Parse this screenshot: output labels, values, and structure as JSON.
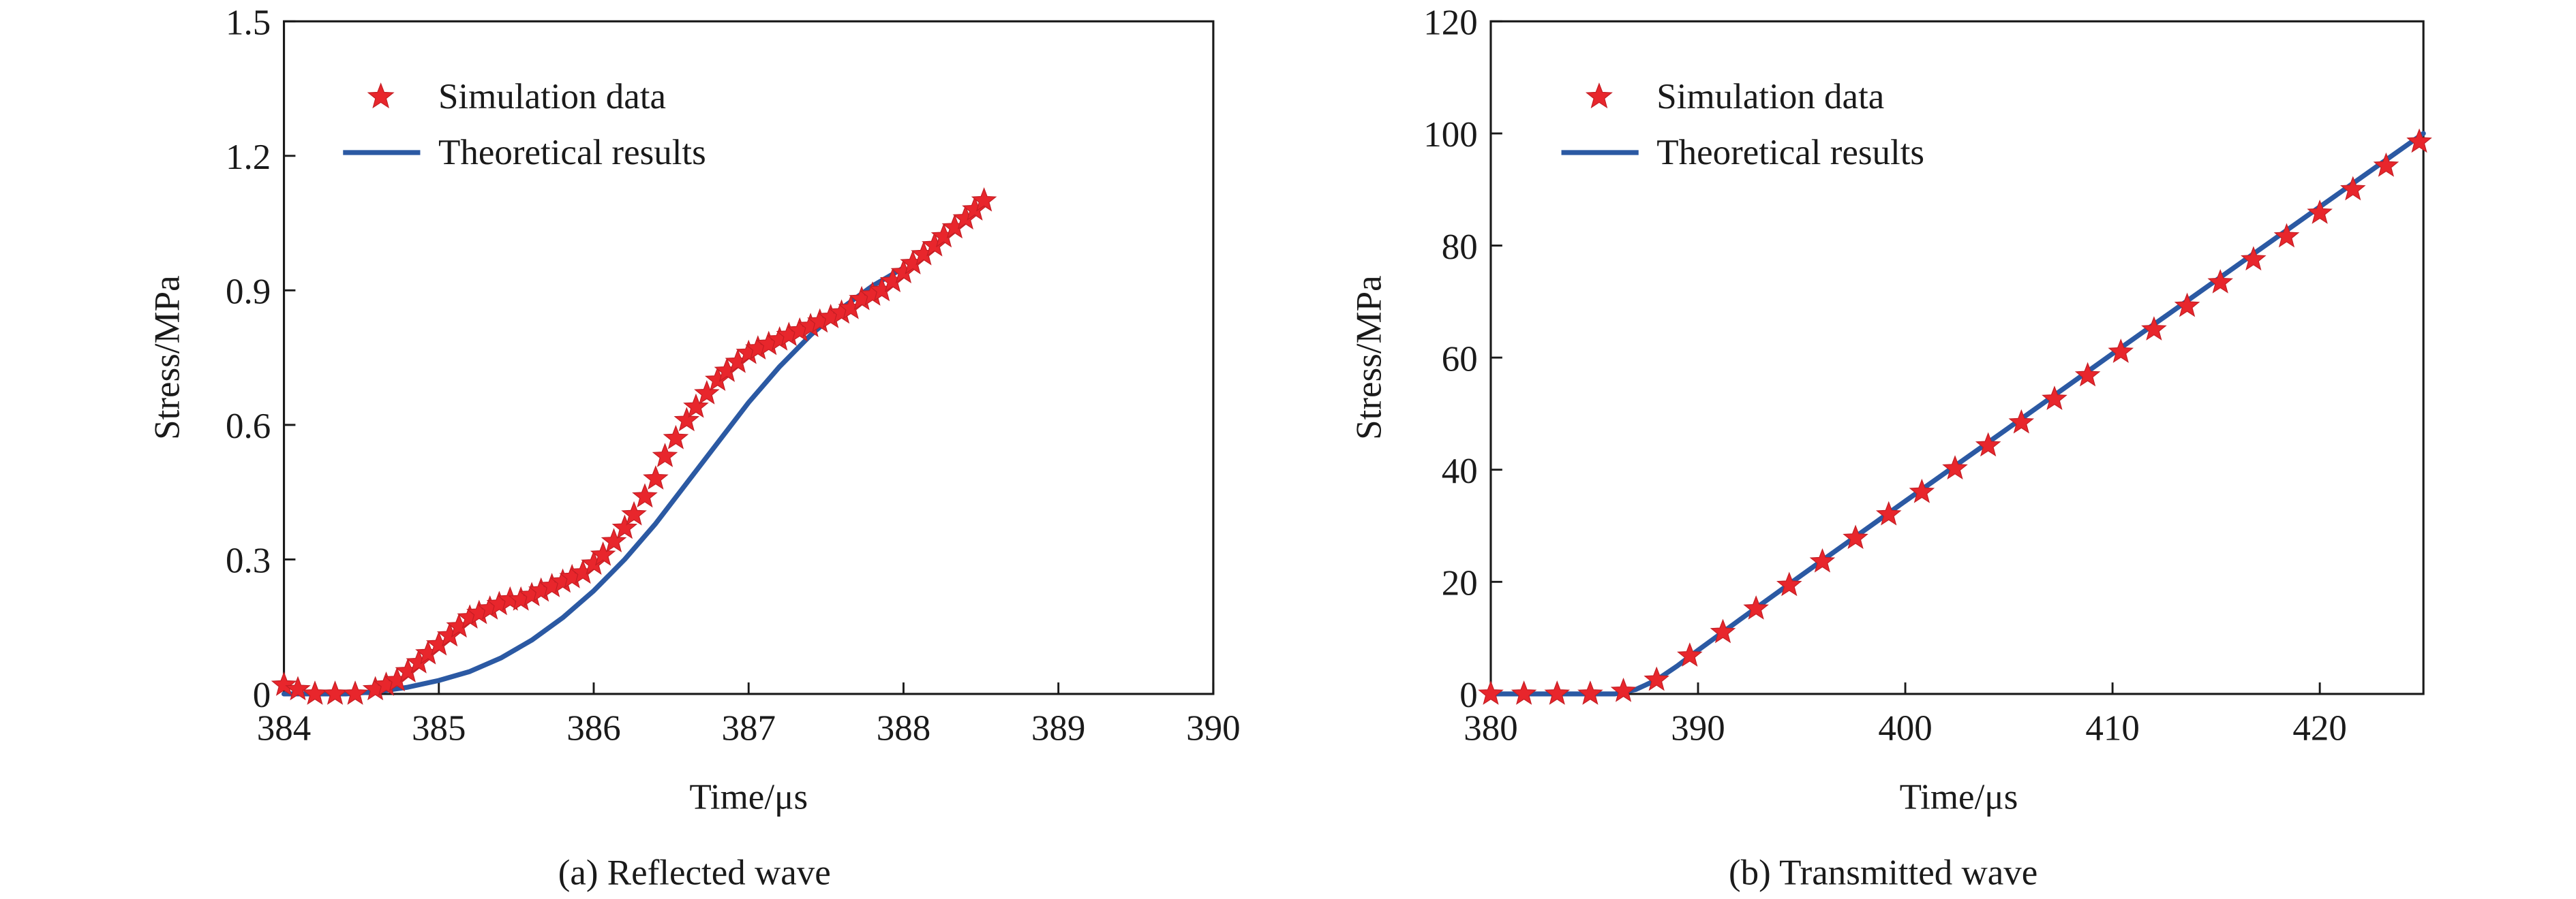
{
  "chart_data": [
    {
      "type": "line",
      "caption": "(a) Reflected wave",
      "xlabel": "Time/μs",
      "ylabel": "Stress/MPa",
      "xlim": [
        384,
        390
      ],
      "ylim": [
        0,
        1.5
      ],
      "xticks": [
        "384",
        "385",
        "386",
        "387",
        "388",
        "389",
        "390"
      ],
      "yticks": [
        "0",
        "0.3",
        "0.6",
        "0.9",
        "1.2",
        "1.5"
      ],
      "legend_position": "top-left",
      "grid": false,
      "series": [
        {
          "name": "Simulation data",
          "marker": "star",
          "color": "#e8262c",
          "x": [
            384.0,
            384.09,
            384.2,
            384.33,
            384.46,
            384.59,
            384.66,
            384.73,
            384.8,
            384.87,
            384.93,
            385.0,
            385.07,
            385.13,
            385.2,
            385.26,
            385.33,
            385.39,
            385.46,
            385.53,
            385.6,
            385.66,
            385.73,
            385.8,
            385.86,
            385.93,
            386.0,
            386.06,
            386.13,
            386.2,
            386.26,
            386.33,
            386.4,
            386.46,
            386.53,
            386.6,
            386.66,
            386.73,
            386.8,
            386.86,
            386.93,
            387.0,
            387.06,
            387.13,
            387.2,
            387.26,
            387.33,
            387.4,
            387.46,
            387.53,
            387.6,
            387.66,
            387.73,
            387.8,
            387.86,
            387.93,
            388.0,
            388.06,
            388.13,
            388.2,
            388.26,
            388.33,
            388.4,
            388.46,
            388.52
          ],
          "y": [
            0.02,
            0.01,
            0.0,
            0.0,
            0.0,
            0.01,
            0.02,
            0.03,
            0.05,
            0.07,
            0.09,
            0.11,
            0.13,
            0.15,
            0.17,
            0.18,
            0.19,
            0.2,
            0.21,
            0.21,
            0.22,
            0.23,
            0.24,
            0.25,
            0.26,
            0.27,
            0.29,
            0.31,
            0.34,
            0.37,
            0.4,
            0.44,
            0.48,
            0.53,
            0.57,
            0.61,
            0.64,
            0.67,
            0.7,
            0.72,
            0.74,
            0.76,
            0.77,
            0.78,
            0.79,
            0.8,
            0.81,
            0.82,
            0.83,
            0.84,
            0.85,
            0.86,
            0.88,
            0.89,
            0.9,
            0.92,
            0.94,
            0.96,
            0.98,
            1.0,
            1.02,
            1.04,
            1.06,
            1.08,
            1.1
          ]
        },
        {
          "name": "Theoretical results",
          "marker": "none",
          "color": "#2b59a3",
          "x": [
            384.0,
            384.2,
            384.4,
            384.6,
            384.8,
            385.0,
            385.2,
            385.4,
            385.6,
            385.8,
            386.0,
            386.2,
            386.4,
            386.6,
            386.8,
            387.0,
            387.2,
            387.4,
            387.6,
            387.8,
            388.0
          ],
          "y": [
            0.0,
            0.0,
            0.0,
            0.005,
            0.015,
            0.03,
            0.05,
            0.08,
            0.12,
            0.17,
            0.23,
            0.3,
            0.38,
            0.47,
            0.56,
            0.65,
            0.73,
            0.8,
            0.86,
            0.91,
            0.95
          ]
        }
      ]
    },
    {
      "type": "line",
      "caption": "(b) Transmitted wave",
      "xlabel": "Time/μs",
      "ylabel": "Stress/MPa",
      "xlim": [
        380,
        425
      ],
      "ylim": [
        0,
        120
      ],
      "xticks": [
        "380",
        "390",
        "400",
        "410",
        "420"
      ],
      "yticks": [
        "0",
        "20",
        "40",
        "60",
        "80",
        "100",
        "120"
      ],
      "legend_position": "top-left",
      "grid": false,
      "series": [
        {
          "name": "Simulation data",
          "marker": "star",
          "color": "#e8262c",
          "x": [
            380.0,
            381.6,
            383.2,
            384.8,
            386.4,
            388.0,
            389.6,
            391.2,
            392.8,
            394.4,
            396.0,
            397.6,
            399.2,
            400.8,
            402.4,
            404.0,
            405.6,
            407.2,
            408.8,
            410.4,
            412.0,
            413.6,
            415.2,
            416.8,
            418.4,
            420.0,
            421.6,
            423.2,
            424.8
          ],
          "y": [
            0,
            0,
            0,
            0,
            0.5,
            2.5,
            6.8,
            11,
            15.2,
            19.4,
            23.6,
            27.8,
            32,
            36,
            40.2,
            44.3,
            48.4,
            52.6,
            56.8,
            61,
            65,
            69.2,
            73.4,
            77.5,
            81.6,
            85.8,
            90,
            94.2,
            98.5
          ]
        },
        {
          "name": "Theoretical results",
          "marker": "none",
          "color": "#2b59a3",
          "x": [
            380,
            384,
            386,
            387,
            388,
            389,
            390,
            392,
            395,
            400,
            405,
            410,
            415,
            420,
            425
          ],
          "y": [
            0,
            0,
            0,
            0.8,
            2.5,
            5,
            7.8,
            13.2,
            21.2,
            34.4,
            47.5,
            60.7,
            73.8,
            86.9,
            100
          ]
        }
      ]
    }
  ]
}
